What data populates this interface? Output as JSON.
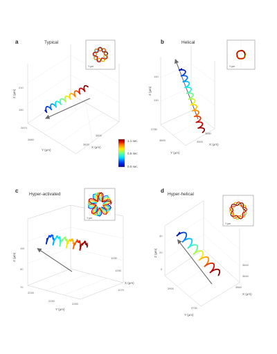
{
  "chart_data": [
    {
      "type": "line",
      "panel": "a",
      "title": "Typical",
      "xlabel": "X (µm)",
      "ylabel": "Y (µm)",
      "zlabel": "Z (µm)",
      "ticks": [
        "2870",
        "2880",
        "3800",
        "3820",
        "190",
        "210"
      ],
      "color_scale": "time",
      "inset_label": "Y µm"
    },
    {
      "type": "line",
      "panel": "b",
      "title": "Helical",
      "xlabel": "X (µm)",
      "ylabel": "Y (µm)",
      "zlabel": "Z (µm)",
      "ticks": [
        "3780",
        "3800",
        "3880",
        "3900",
        "140",
        "130"
      ],
      "color_scale": "time",
      "inset_label": "Y µm"
    },
    {
      "type": "line",
      "panel": "c",
      "title": "Hyper-activated",
      "xlabel": "X (µm)",
      "ylabel": "Y (µm)",
      "zlabel": "Z (µm)",
      "ticks": [
        "2240",
        "2250",
        "2260",
        "1230",
        "1250",
        "1270",
        "110",
        "90",
        "70"
      ],
      "color_scale": "time",
      "inset_label": "Y µm"
    },
    {
      "type": "line",
      "panel": "d",
      "title": "Hyper-helical",
      "xlabel": "X (µm)",
      "ylabel": "Y (µm)",
      "zlabel": "Z (µm)",
      "ticks": [
        "3900",
        "3750",
        "3820",
        "3840",
        "3860",
        "40",
        "20",
        "0"
      ],
      "color_scale": "time",
      "inset_label": "Y µm"
    }
  ],
  "colorbar": {
    "labels": [
      "1.1 sec",
      "0.5 sec",
      "0.0 sec"
    ],
    "min": 0.0,
    "max": 1.1,
    "colors": [
      "#00008f",
      "#0060ff",
      "#00e5ff",
      "#6dff8a",
      "#fff000",
      "#ff7a00",
      "#d40000",
      "#800000"
    ]
  },
  "colors": {
    "arrow": "#6a6a6a",
    "box": "#c8c8c8"
  }
}
